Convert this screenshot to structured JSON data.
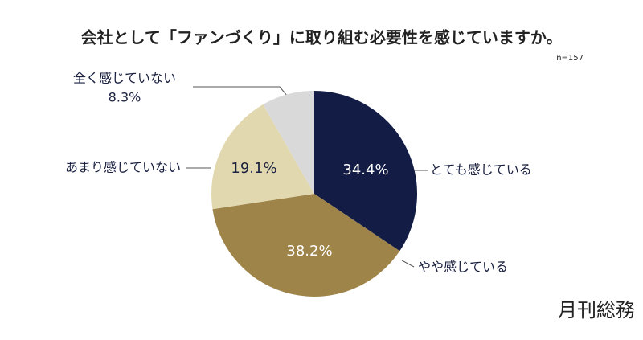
{
  "chart_data": {
    "type": "pie",
    "title": "会社として「ファンづくり」に取り組む必要性を感じていますか。",
    "subtitle": "n=157",
    "categories": [
      "とても感じている",
      "やや感じている",
      "あまり感じていない",
      "全く感じていない"
    ],
    "values": [
      34.4,
      38.2,
      19.1,
      8.3
    ],
    "value_labels": [
      "34.4%",
      "38.2%",
      "19.1%",
      "8.3%"
    ],
    "colors": [
      "#131c45",
      "#9e8448",
      "#e2d8b0",
      "#d9d9d9"
    ],
    "source": "月刊総務"
  }
}
